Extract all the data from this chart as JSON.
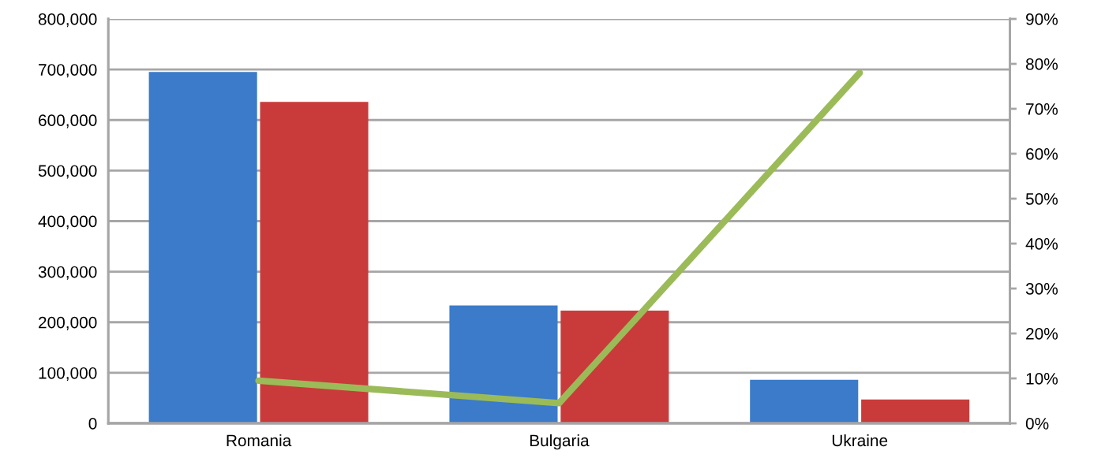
{
  "chart_data": {
    "type": "bar",
    "categories": [
      "Romania",
      "Bulgaria",
      "Ukraine"
    ],
    "series": [
      {
        "color": "#3b7bc9",
        "values": [
          695000,
          233000,
          86000
        ]
      },
      {
        "color": "#c93b3a",
        "values": [
          636000,
          223000,
          47000
        ]
      },
      {
        "type": "line",
        "axis": "y2",
        "color": "#9bbb59",
        "values": [
          9.5,
          4.5,
          78
        ],
        "marker": "none",
        "line_style": "solid"
      }
    ],
    "ylim": [
      0,
      800000
    ],
    "yticks": [
      {
        "value": 0,
        "label": "0"
      },
      {
        "value": 100000,
        "label": "100,000"
      },
      {
        "value": 200000,
        "label": "200,000"
      },
      {
        "value": 300000,
        "label": "300,000"
      },
      {
        "value": 400000,
        "label": "400,000"
      },
      {
        "value": 500000,
        "label": "500,000"
      },
      {
        "value": 600000,
        "label": "600,000"
      },
      {
        "value": 700000,
        "label": "700,000"
      },
      {
        "value": 800000,
        "label": "800,000"
      }
    ],
    "y2lim": [
      0,
      90
    ],
    "y2ticks": [
      {
        "value": 0,
        "label": "0%"
      },
      {
        "value": 10,
        "label": "10%"
      },
      {
        "value": 20,
        "label": "20%"
      },
      {
        "value": 30,
        "label": "30%"
      },
      {
        "value": 40,
        "label": "40%"
      },
      {
        "value": 50,
        "label": "50%"
      },
      {
        "value": 60,
        "label": "60%"
      },
      {
        "value": 70,
        "label": "70%"
      },
      {
        "value": 80,
        "label": "80%"
      },
      {
        "value": 90,
        "label": "90%"
      }
    ],
    "grid": "y"
  }
}
